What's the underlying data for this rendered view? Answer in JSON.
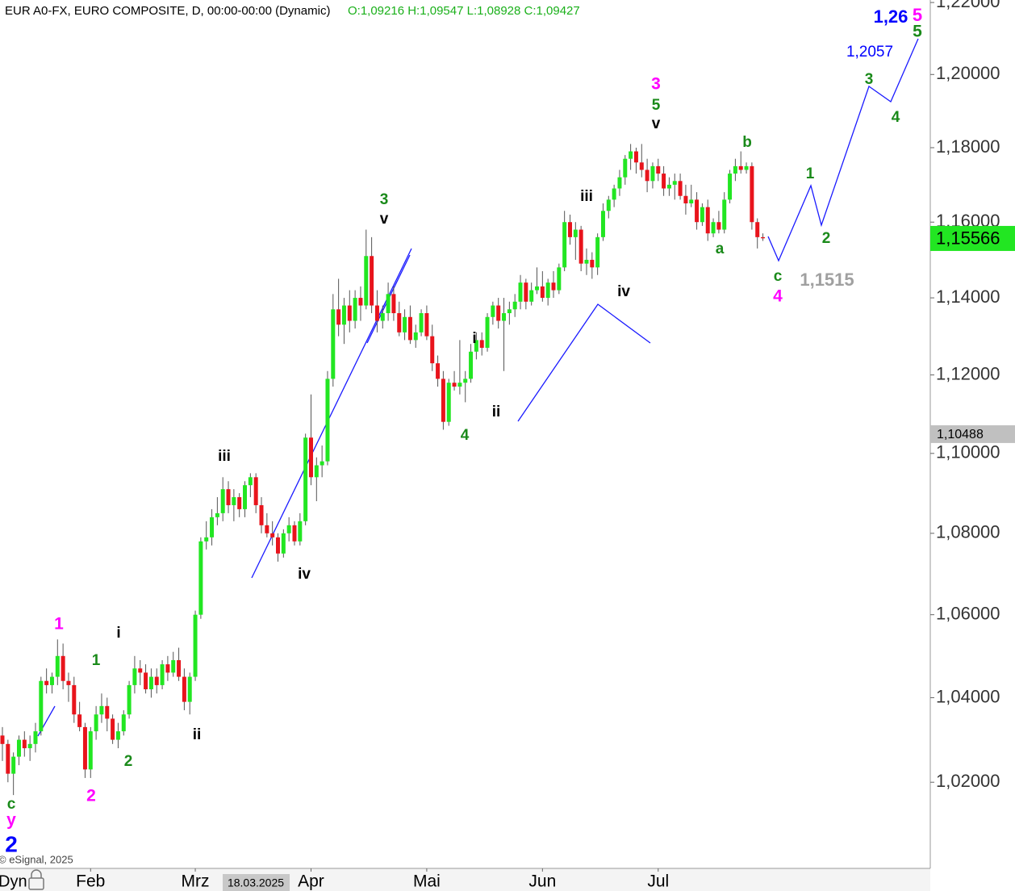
{
  "chart_data": {
    "type": "candlestick",
    "header": "EUR A0-FX, EURO COMPOSITE, D, 00:00-00:00 (Dynamic)",
    "ohlc_text": "O:1,09216 H:1,09547 L:1,08928 C:1,09427",
    "footer": "© eSignal, 2025",
    "axis_mode": "Dyn",
    "cursor_date": "18.03.2025",
    "log": true,
    "ylim": [
      1.0002,
      1.2207
    ],
    "yticks": [
      {
        "value": 1.02,
        "label": "1,02000"
      },
      {
        "value": 1.04,
        "label": "1,04000"
      },
      {
        "value": 1.06,
        "label": "1,06000"
      },
      {
        "value": 1.08,
        "label": "1,08000"
      },
      {
        "value": 1.1,
        "label": "1,10000"
      },
      {
        "value": 1.12,
        "label": "1,12000"
      },
      {
        "value": 1.14,
        "label": "1,14000"
      },
      {
        "value": 1.16,
        "label": "1,16000"
      },
      {
        "value": 1.18,
        "label": "1,18000"
      },
      {
        "value": 1.2,
        "label": "1,20000"
      },
      {
        "value": 1.22,
        "label": "1,22000"
      }
    ],
    "xticks": [
      {
        "value": 16,
        "label": "Feb"
      },
      {
        "value": 35,
        "label": "Mrz"
      },
      {
        "value": 56,
        "label": "Apr"
      },
      {
        "value": 77,
        "label": "Mai"
      },
      {
        "value": 98,
        "label": "Jun"
      },
      {
        "value": 119,
        "label": "Jul"
      }
    ],
    "price_markers": [
      {
        "value": 1.15566,
        "label": "1,15566",
        "color": "#22e622"
      },
      {
        "value": 1.10488,
        "label": "1,10488",
        "color": "#c0c0c0"
      }
    ],
    "up_color": "#22e622",
    "down_color": "#e8141c",
    "candles": [
      [
        1.031,
        1.033,
        1.025,
        1.029
      ],
      [
        1.029,
        1.03,
        1.02,
        1.022
      ],
      [
        1.022,
        1.027,
        1.017,
        1.026
      ],
      [
        1.026,
        1.031,
        1.024,
        1.03
      ],
      [
        1.03,
        1.032,
        1.026,
        1.028
      ],
      [
        1.028,
        1.031,
        1.025,
        1.029
      ],
      [
        1.029,
        1.034,
        1.027,
        1.032
      ],
      [
        1.032,
        1.045,
        1.031,
        1.044
      ],
      [
        1.044,
        1.047,
        1.041,
        1.043
      ],
      [
        1.043,
        1.046,
        1.041,
        1.045
      ],
      [
        1.045,
        1.054,
        1.043,
        1.05
      ],
      [
        1.05,
        1.053,
        1.042,
        1.044
      ],
      [
        1.044,
        1.046,
        1.039,
        1.043
      ],
      [
        1.043,
        1.045,
        1.034,
        1.036
      ],
      [
        1.036,
        1.039,
        1.032,
        1.033
      ],
      [
        1.033,
        1.034,
        1.021,
        1.023
      ],
      [
        1.023,
        1.033,
        1.021,
        1.032
      ],
      [
        1.032,
        1.038,
        1.03,
        1.036
      ],
      [
        1.036,
        1.041,
        1.034,
        1.038
      ],
      [
        1.038,
        1.04,
        1.032,
        1.035
      ],
      [
        1.035,
        1.036,
        1.029,
        1.03
      ],
      [
        1.03,
        1.034,
        1.028,
        1.032
      ],
      [
        1.032,
        1.037,
        1.031,
        1.036
      ],
      [
        1.036,
        1.044,
        1.035,
        1.043
      ],
      [
        1.043,
        1.05,
        1.041,
        1.047
      ],
      [
        1.047,
        1.049,
        1.043,
        1.046
      ],
      [
        1.046,
        1.048,
        1.041,
        1.042
      ],
      [
        1.042,
        1.047,
        1.04,
        1.045
      ],
      [
        1.045,
        1.047,
        1.041,
        1.043
      ],
      [
        1.043,
        1.049,
        1.042,
        1.048
      ],
      [
        1.048,
        1.05,
        1.044,
        1.046
      ],
      [
        1.046,
        1.051,
        1.045,
        1.049
      ],
      [
        1.049,
        1.052,
        1.044,
        1.045
      ],
      [
        1.045,
        1.047,
        1.037,
        1.039
      ],
      [
        1.039,
        1.046,
        1.036,
        1.045
      ],
      [
        1.045,
        1.061,
        1.044,
        1.06
      ],
      [
        1.06,
        1.079,
        1.059,
        1.078
      ],
      [
        1.078,
        1.083,
        1.076,
        1.079
      ],
      [
        1.079,
        1.086,
        1.077,
        1.084
      ],
      [
        1.084,
        1.089,
        1.082,
        1.085
      ],
      [
        1.085,
        1.094,
        1.083,
        1.091
      ],
      [
        1.091,
        1.093,
        1.085,
        1.087
      ],
      [
        1.087,
        1.091,
        1.083,
        1.089
      ],
      [
        1.089,
        1.09,
        1.084,
        1.086
      ],
      [
        1.086,
        1.093,
        1.084,
        1.092
      ],
      [
        1.092,
        1.095,
        1.089,
        1.094
      ],
      [
        1.094,
        1.095,
        1.085,
        1.087
      ],
      [
        1.087,
        1.089,
        1.08,
        1.082
      ],
      [
        1.082,
        1.085,
        1.079,
        1.08
      ],
      [
        1.08,
        1.083,
        1.077,
        1.079
      ],
      [
        1.079,
        1.08,
        1.073,
        1.075
      ],
      [
        1.075,
        1.081,
        1.074,
        1.08
      ],
      [
        1.08,
        1.084,
        1.078,
        1.082
      ],
      [
        1.082,
        1.083,
        1.077,
        1.078
      ],
      [
        1.078,
        1.085,
        1.077,
        1.083
      ],
      [
        1.083,
        1.105,
        1.082,
        1.104
      ],
      [
        1.104,
        1.115,
        1.092,
        1.094
      ],
      [
        1.094,
        1.099,
        1.088,
        1.097
      ],
      [
        1.097,
        1.102,
        1.094,
        1.098
      ],
      [
        1.098,
        1.121,
        1.097,
        1.119
      ],
      [
        1.119,
        1.141,
        1.117,
        1.137
      ],
      [
        1.137,
        1.145,
        1.13,
        1.133
      ],
      [
        1.133,
        1.14,
        1.128,
        1.138
      ],
      [
        1.138,
        1.142,
        1.131,
        1.134
      ],
      [
        1.134,
        1.142,
        1.132,
        1.14
      ],
      [
        1.14,
        1.143,
        1.134,
        1.138
      ],
      [
        1.138,
        1.158,
        1.137,
        1.151
      ],
      [
        1.151,
        1.156,
        1.136,
        1.138
      ],
      [
        1.138,
        1.142,
        1.131,
        1.134
      ],
      [
        1.134,
        1.138,
        1.132,
        1.136
      ],
      [
        1.136,
        1.144,
        1.134,
        1.141
      ],
      [
        1.141,
        1.143,
        1.134,
        1.136
      ],
      [
        1.136,
        1.139,
        1.13,
        1.131
      ],
      [
        1.131,
        1.137,
        1.129,
        1.135
      ],
      [
        1.135,
        1.138,
        1.128,
        1.129
      ],
      [
        1.129,
        1.133,
        1.127,
        1.131
      ],
      [
        1.131,
        1.137,
        1.13,
        1.136
      ],
      [
        1.136,
        1.138,
        1.129,
        1.13
      ],
      [
        1.13,
        1.133,
        1.121,
        1.123
      ],
      [
        1.123,
        1.125,
        1.117,
        1.119
      ],
      [
        1.119,
        1.121,
        1.106,
        1.108
      ],
      [
        1.108,
        1.119,
        1.107,
        1.118
      ],
      [
        1.118,
        1.121,
        1.116,
        1.117
      ],
      [
        1.117,
        1.129,
        1.115,
        1.118
      ],
      [
        1.118,
        1.121,
        1.113,
        1.119
      ],
      [
        1.119,
        1.128,
        1.118,
        1.126
      ],
      [
        1.126,
        1.131,
        1.124,
        1.129
      ],
      [
        1.129,
        1.131,
        1.125,
        1.127
      ],
      [
        1.127,
        1.136,
        1.126,
        1.135
      ],
      [
        1.135,
        1.139,
        1.133,
        1.138
      ],
      [
        1.138,
        1.14,
        1.132,
        1.134
      ],
      [
        1.134,
        1.14,
        1.121,
        1.136
      ],
      [
        1.136,
        1.139,
        1.133,
        1.137
      ],
      [
        1.137,
        1.141,
        1.135,
        1.139
      ],
      [
        1.139,
        1.146,
        1.137,
        1.144
      ],
      [
        1.144,
        1.145,
        1.137,
        1.139
      ],
      [
        1.139,
        1.144,
        1.138,
        1.142
      ],
      [
        1.142,
        1.148,
        1.141,
        1.143
      ],
      [
        1.143,
        1.147,
        1.139,
        1.14
      ],
      [
        1.14,
        1.145,
        1.138,
        1.144
      ],
      [
        1.144,
        1.147,
        1.14,
        1.142
      ],
      [
        1.142,
        1.149,
        1.141,
        1.148
      ],
      [
        1.148,
        1.163,
        1.147,
        1.16
      ],
      [
        1.16,
        1.162,
        1.154,
        1.156
      ],
      [
        1.156,
        1.16,
        1.15,
        1.158
      ],
      [
        1.158,
        1.159,
        1.147,
        1.149
      ],
      [
        1.149,
        1.153,
        1.146,
        1.15
      ],
      [
        1.15,
        1.152,
        1.145,
        1.148
      ],
      [
        1.148,
        1.157,
        1.146,
        1.156
      ],
      [
        1.156,
        1.165,
        1.155,
        1.163
      ],
      [
        1.163,
        1.167,
        1.161,
        1.166
      ],
      [
        1.166,
        1.17,
        1.164,
        1.169
      ],
      [
        1.169,
        1.174,
        1.167,
        1.172
      ],
      [
        1.172,
        1.178,
        1.17,
        1.177
      ],
      [
        1.177,
        1.181,
        1.174,
        1.179
      ],
      [
        1.179,
        1.18,
        1.173,
        1.176
      ],
      [
        1.176,
        1.181,
        1.172,
        1.174
      ],
      [
        1.174,
        1.177,
        1.168,
        1.171
      ],
      [
        1.171,
        1.176,
        1.169,
        1.175
      ],
      [
        1.175,
        1.177,
        1.171,
        1.173
      ],
      [
        1.173,
        1.175,
        1.167,
        1.169
      ],
      [
        1.169,
        1.172,
        1.167,
        1.17
      ],
      [
        1.17,
        1.173,
        1.166,
        1.171
      ],
      [
        1.171,
        1.173,
        1.166,
        1.167
      ],
      [
        1.167,
        1.17,
        1.162,
        1.165
      ],
      [
        1.165,
        1.17,
        1.164,
        1.166
      ],
      [
        1.166,
        1.168,
        1.158,
        1.16
      ],
      [
        1.16,
        1.165,
        1.159,
        1.164
      ],
      [
        1.164,
        1.166,
        1.155,
        1.157
      ],
      [
        1.157,
        1.161,
        1.156,
        1.16
      ],
      [
        1.16,
        1.163,
        1.157,
        1.158
      ],
      [
        1.158,
        1.168,
        1.157,
        1.166
      ],
      [
        1.166,
        1.174,
        1.165,
        1.173
      ],
      [
        1.173,
        1.177,
        1.171,
        1.175
      ],
      [
        1.175,
        1.179,
        1.173,
        1.174
      ],
      [
        1.174,
        1.176,
        1.173,
        1.175
      ],
      [
        1.175,
        1.176,
        1.158,
        1.16
      ],
      [
        1.16,
        1.161,
        1.153,
        1.156
      ],
      [
        1.156,
        1.157,
        1.155,
        1.1557
      ]
    ],
    "annotations": [
      {
        "text": "1,26",
        "color": "#0000ff"
      },
      {
        "text": "5",
        "color": "#ff00ff"
      },
      {
        "text": "5",
        "color": "#1a8a1a"
      },
      {
        "text": "1,2057",
        "color": "#0000ff"
      },
      {
        "text": "3",
        "color": "#1a8a1a"
      },
      {
        "text": "4",
        "color": "#1a8a1a"
      },
      {
        "text": "1",
        "color": "#1a8a1a"
      },
      {
        "text": "2",
        "color": "#1a8a1a"
      },
      {
        "text": "1,1515",
        "color": "#a0a0a0"
      },
      {
        "text": "c",
        "color": "#1a8a1a"
      },
      {
        "text": "4",
        "color": "#ff00ff"
      },
      {
        "text": "b",
        "color": "#1a8a1a"
      },
      {
        "text": "a",
        "color": "#1a8a1a"
      },
      {
        "text": "3",
        "color": "#ff00ff"
      },
      {
        "text": "5",
        "color": "#1a8a1a"
      },
      {
        "text": "v",
        "color": "#000000"
      },
      {
        "text": "iii",
        "color": "#000000"
      },
      {
        "text": "iv",
        "color": "#000000"
      },
      {
        "text": "i",
        "color": "#000000"
      },
      {
        "text": "ii",
        "color": "#000000"
      },
      {
        "text": "4",
        "color": "#1a8a1a"
      },
      {
        "text": "3",
        "color": "#1a8a1a"
      },
      {
        "text": "v",
        "color": "#000000"
      },
      {
        "text": "iii",
        "color": "#000000"
      },
      {
        "text": "iv",
        "color": "#000000"
      },
      {
        "text": "i",
        "color": "#000000"
      },
      {
        "text": "1",
        "color": "#1a8a1a"
      },
      {
        "text": "ii",
        "color": "#000000"
      },
      {
        "text": "2",
        "color": "#1a8a1a"
      },
      {
        "text": "2",
        "color": "#ff00ff"
      },
      {
        "text": "1",
        "color": "#ff00ff"
      },
      {
        "text": "c",
        "color": "#1a8a1a"
      },
      {
        "text": "y",
        "color": "#ff00ff"
      },
      {
        "text": "2",
        "color": "#0000ff"
      }
    ]
  }
}
